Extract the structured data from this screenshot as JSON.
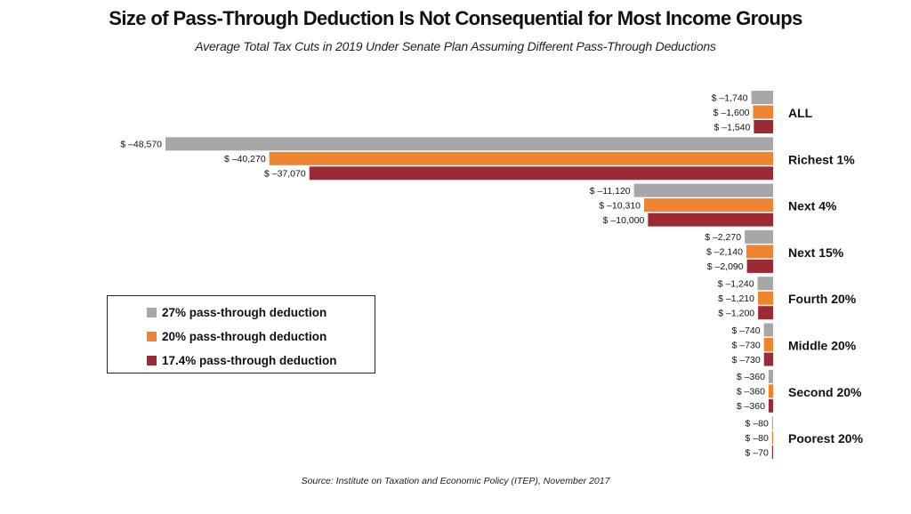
{
  "colors": {
    "s27": "#a7a7a9",
    "s20": "#ef8430",
    "s17": "#9b2a35"
  },
  "chart_data": {
    "type": "bar",
    "orientation": "horizontal",
    "title": "Size of Pass-Through Deduction Is Not Consequential for Most Income Groups",
    "subtitle": "Average Total Tax Cuts in 2019 Under Senate Plan Assuming Different Pass-Through Deductions",
    "source": "Source: Institute on Taxation and Economic Policy (ITEP), November 2017",
    "categories": [
      "ALL",
      "Richest 1%",
      "Next 4%",
      "Next 15%",
      "Fourth 20%",
      "Middle 20%",
      "Second 20%",
      "Poorest 20%"
    ],
    "series": [
      {
        "name": "27% pass-through deduction",
        "values": [
          -1740,
          -48570,
          -11120,
          -2270,
          -1240,
          -740,
          -360,
          -80
        ],
        "labels": [
          "$ –1,740",
          "$ –48,570",
          "$ –11,120",
          "$ –2,270",
          "$ –1,240",
          "$ –740",
          "$ –360",
          "$ –80"
        ]
      },
      {
        "name": "20% pass-through deduction",
        "values": [
          -1600,
          -40270,
          -10310,
          -2140,
          -1210,
          -730,
          -360,
          -80
        ],
        "labels": [
          "$ –1,600",
          "$ –40,270",
          "$ –10,310",
          "$ –2,140",
          "$ –1,210",
          "$ –730",
          "$ –360",
          "$ –80"
        ]
      },
      {
        "name": "17.4% pass-through deduction",
        "values": [
          -1540,
          -37070,
          -10000,
          -2090,
          -1200,
          -730,
          -360,
          -70
        ],
        "labels": [
          "$ –1,540",
          "$ –37,070",
          "$ –10,000",
          "$ –2,090",
          "$ –1,200",
          "$ –730",
          "$ –360",
          "$ –70"
        ]
      }
    ],
    "xlim": [
      -48570,
      0
    ],
    "legend_position": "left"
  }
}
